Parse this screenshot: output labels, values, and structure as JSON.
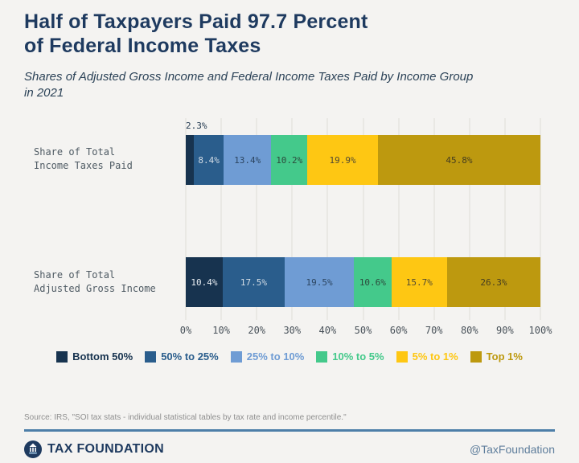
{
  "header": {
    "title_lines": [
      "Half of Taxpayers Paid 97.7 Percent",
      "of Federal Income Taxes"
    ],
    "subtitle_lines": [
      "Shares of Adjusted Gross Income and Federal Income Taxes Paid by Income Group",
      "in 2021"
    ]
  },
  "chart_data": {
    "type": "bar",
    "variant": "horizontal-stacked",
    "categories": [
      "Share of Total Income Taxes Paid",
      "Share of Total Adjusted Gross Income"
    ],
    "category_label_lines": [
      [
        "Share of Total",
        "Income Taxes Paid"
      ],
      [
        "Share of Total",
        "Adjusted Gross Income"
      ]
    ],
    "series": [
      {
        "name": "Bottom 50%",
        "color": "#17334f",
        "label_color": "#e9eef3",
        "values": [
          2.3,
          10.4
        ]
      },
      {
        "name": "50% to 25%",
        "color": "#2a5d8c",
        "label_color": "#d3dce5",
        "values": [
          8.4,
          17.5
        ]
      },
      {
        "name": "25% to 10%",
        "color": "#6f9cd4",
        "label_color": "#2c4560",
        "values": [
          13.4,
          19.5
        ]
      },
      {
        "name": "10% to 5%",
        "color": "#44c98b",
        "label_color": "#2c4a3c",
        "values": [
          10.2,
          10.6
        ]
      },
      {
        "name": "5% to 1%",
        "color": "#fec713",
        "label_color": "#514a33",
        "values": [
          19.9,
          15.7
        ]
      },
      {
        "name": "Top 1%",
        "color": "#bd990f",
        "label_color": "#453d20",
        "values": [
          45.8,
          26.3
        ]
      }
    ],
    "x_ticks": [
      "0%",
      "10%",
      "20%",
      "30%",
      "40%",
      "50%",
      "60%",
      "70%",
      "80%",
      "90%",
      "100%"
    ],
    "xlim": [
      0,
      100
    ],
    "grid": true,
    "legend_position": "bottom",
    "value_suffix": "%",
    "outside_label_threshold": 4,
    "outside_label_color": "#21384f"
  },
  "footer": {
    "source": "Source: IRS, \"SOI tax stats - individual statistical tables by tax rate and income percentile.\"",
    "brand": "TAX FOUNDATION",
    "handle": "@TaxFoundation"
  },
  "theme": {
    "background": "#f4f3f1",
    "title_color": "#1e3a5f",
    "subtitle_color": "#2b4257",
    "grid_color": "#dedcd8",
    "axis_text_color": "#49525a",
    "category_label_color": "#4e5a63",
    "source_color": "#8f8f8f",
    "rule_color": "#4d7ea8",
    "handle_color": "#5f7e9c"
  }
}
